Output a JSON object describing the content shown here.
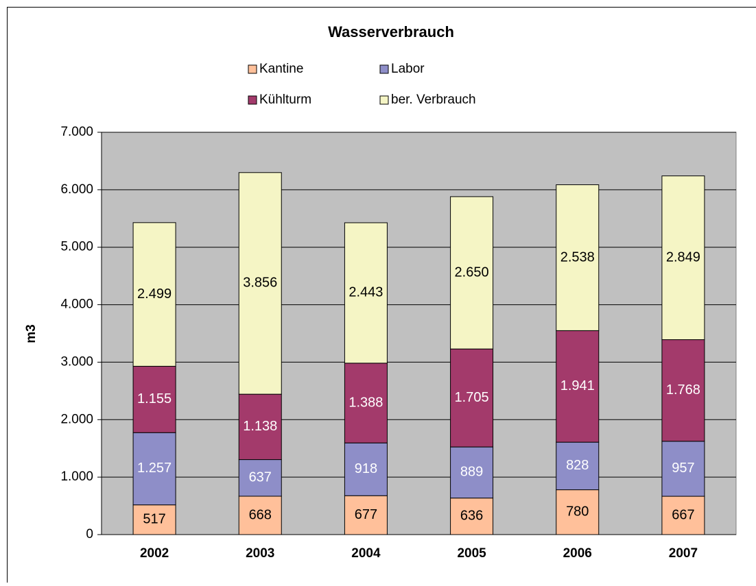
{
  "chart_data": {
    "type": "stacked_bar",
    "title": "Wasserverbrauch",
    "y_label": "m3",
    "categories": [
      "2002",
      "2003",
      "2004",
      "2005",
      "2006",
      "2007"
    ],
    "series": [
      {
        "name": "Kantine",
        "color": "#ffc09a",
        "label_color": "#000000",
        "values": [
          517,
          668,
          677,
          636,
          780,
          667
        ],
        "value_labels": [
          "517",
          "668",
          "677",
          "636",
          "780",
          "667"
        ]
      },
      {
        "name": "Labor",
        "color": "#8e8ec8",
        "label_color": "#ffffff",
        "values": [
          1257,
          637,
          918,
          889,
          828,
          957
        ],
        "value_labels": [
          "1.257",
          "637",
          "918",
          "889",
          "828",
          "957"
        ]
      },
      {
        "name": "Kühlturm",
        "color": "#a33a6b",
        "label_color": "#ffffff",
        "values": [
          1155,
          1138,
          1388,
          1705,
          1941,
          1768
        ],
        "value_labels": [
          "1.155",
          "1.138",
          "1.388",
          "1.705",
          "1.941",
          "1.768"
        ]
      },
      {
        "name": "ber. Verbrauch",
        "color": "#f5f5c5",
        "label_color": "#000000",
        "values": [
          2499,
          3856,
          2443,
          2650,
          2538,
          2849
        ],
        "value_labels": [
          "2.499",
          "3.856",
          "2.443",
          "2.650",
          "2.538",
          "2.849"
        ]
      }
    ],
    "ylim": [
      0,
      7000
    ],
    "yticks": [
      0,
      {
        "value": 1000,
        "label": "1.000"
      },
      {
        "value": 2000,
        "label": "2.000"
      },
      {
        "value": 3000,
        "label": "3.000"
      },
      {
        "value": 4000,
        "label": "4.000"
      },
      {
        "value": 5000,
        "label": "5.000"
      },
      {
        "value": 6000,
        "label": "6.000"
      },
      {
        "value": 7000,
        "label": "7.000"
      }
    ],
    "grid": true,
    "plot_background": "#c0c0c0"
  }
}
